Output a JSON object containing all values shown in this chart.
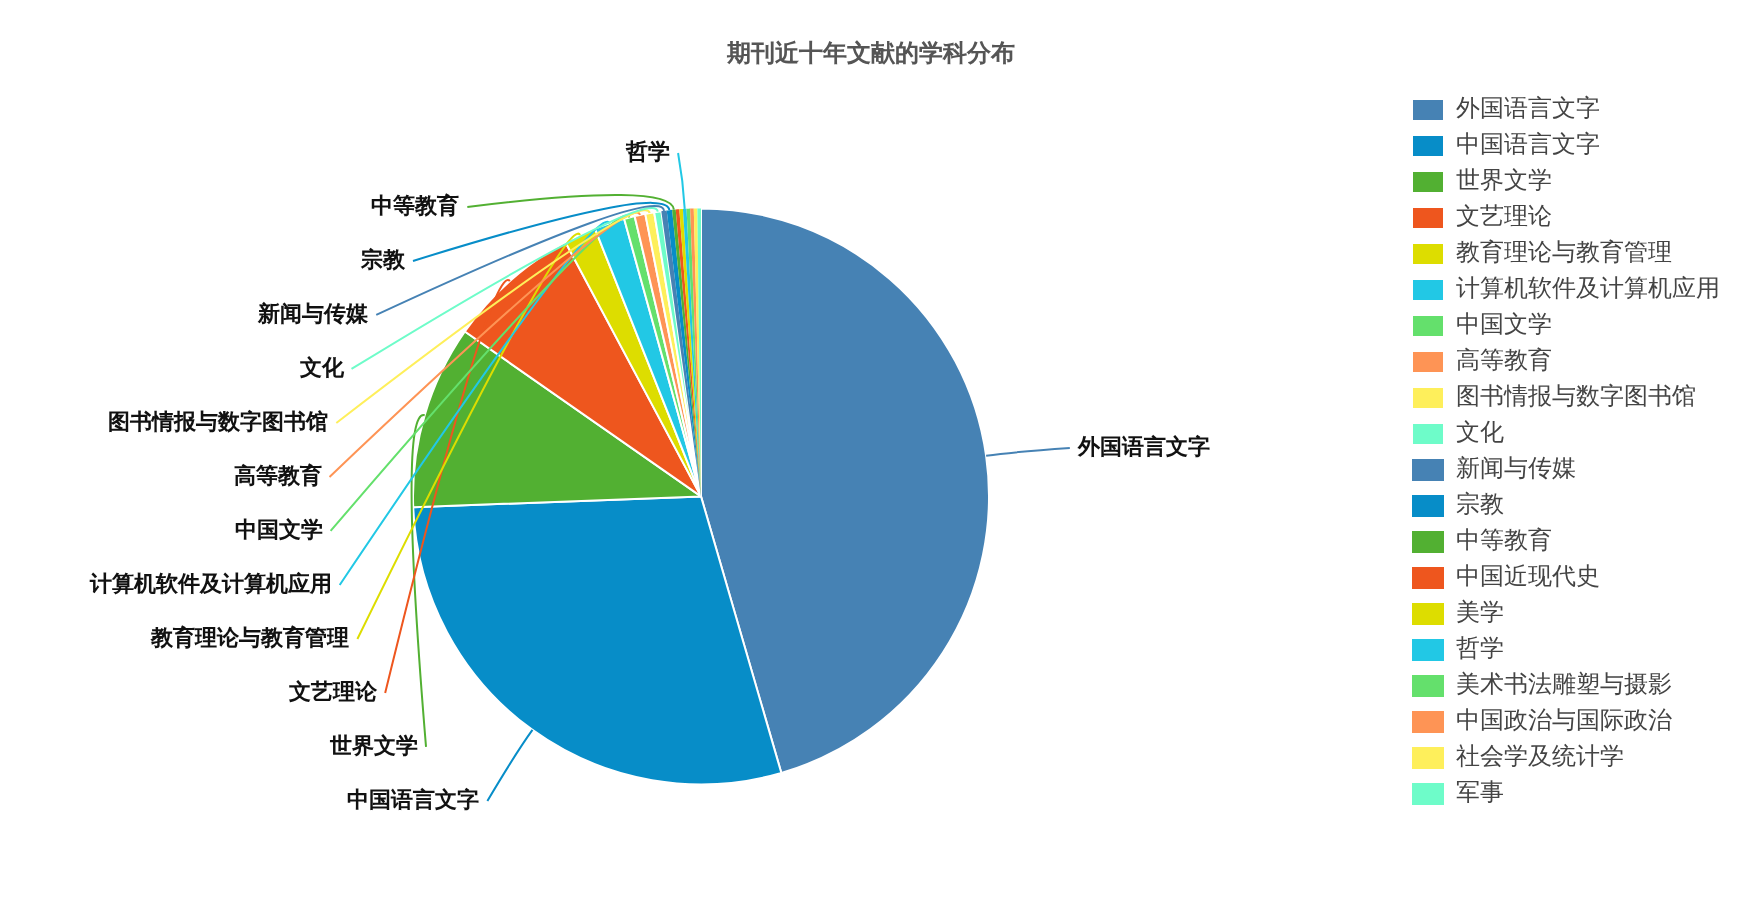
{
  "chart_data": {
    "type": "pie",
    "title": "期刊近十年文献的学科分布",
    "categories": [
      "外国语言文字",
      "中国语言文字",
      "世界文学",
      "文艺理论",
      "教育理论与教育管理",
      "计算机软件及计算机应用",
      "中国文学",
      "高等教育",
      "图书情报与数字图书馆",
      "文化",
      "新闻与传媒",
      "宗教",
      "中等教育",
      "中国近现代史",
      "美学",
      "哲学",
      "美术书法雕塑与摄影",
      "中国政治与国际政治",
      "社会学及统计学",
      "军事"
    ],
    "values": [
      45.5,
      28.9,
      10.3,
      7.5,
      1.8,
      1.7,
      0.6,
      0.6,
      0.5,
      0.4,
      0.3,
      0.3,
      0.2,
      0.2,
      0.2,
      0.2,
      0.2,
      0.2,
      0.2,
      0.2
    ],
    "colors": [
      "#4682b4",
      "#078dc8",
      "#52b032",
      "#ee561e",
      "#dddd00",
      "#22c8e5",
      "#64e06c",
      "#fe9455",
      "#feef5b",
      "#6efcc9",
      "#4682b4",
      "#078dc8",
      "#52b032",
      "#ee561e",
      "#dddd00",
      "#22c8e5",
      "#64e06c",
      "#fe9455",
      "#feef5b",
      "#6efcc9"
    ],
    "value_labels": [
      "外国语言文字",
      "中国语言文字",
      "世界文学",
      "文艺理论",
      "教育理论与教育管理",
      "计算机软件及计算机应用",
      "中国文学",
      "高等教育",
      "图书情报与数字图书馆",
      "文化",
      "新闻与传媒",
      "宗教",
      "中等教育",
      null,
      null,
      "哲学",
      null,
      null,
      null,
      null
    ],
    "legend": "right"
  }
}
